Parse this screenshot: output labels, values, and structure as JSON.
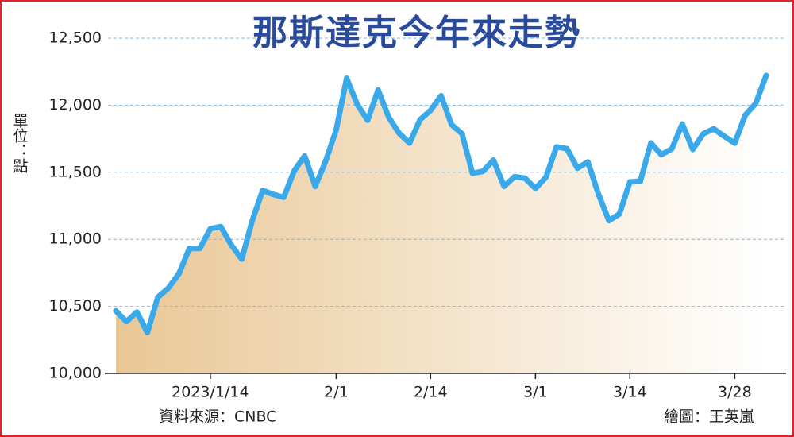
{
  "chart_data": {
    "type": "area-line",
    "title": "那斯達克今年來走勢",
    "y_label": "單位：點",
    "source": "資料來源：CNBC",
    "credit": "繪圖：王英嵐",
    "color": "#3aa9ea",
    "fill_colors": [
      "#e9c795",
      "#ffffff"
    ],
    "grid": true,
    "ylim": [
      10000,
      12500
    ],
    "yticks": [
      {
        "value": 10000,
        "label": "10,000"
      },
      {
        "value": 10500,
        "label": "10,500"
      },
      {
        "value": 11000,
        "label": "11,000"
      },
      {
        "value": 11500,
        "label": "11,500"
      },
      {
        "value": 12000,
        "label": "12,000"
      },
      {
        "value": 12500,
        "label": "12,500"
      }
    ],
    "categories": [
      null,
      null,
      null,
      null,
      null,
      null,
      null,
      null,
      null,
      "2023/1/14",
      null,
      null,
      null,
      null,
      null,
      null,
      null,
      null,
      null,
      null,
      null,
      "2/1",
      null,
      null,
      null,
      null,
      null,
      null,
      null,
      null,
      "2/14",
      null,
      null,
      null,
      null,
      null,
      null,
      null,
      null,
      null,
      "3/1",
      null,
      null,
      null,
      null,
      null,
      null,
      null,
      null,
      "3/14",
      null,
      null,
      null,
      null,
      null,
      null,
      null,
      null,
      null,
      "3/28",
      null,
      null,
      null
    ],
    "values": [
      10466,
      10386,
      10458,
      10305,
      10569,
      10636,
      10743,
      10931,
      10932,
      11079,
      11095,
      10958,
      10852,
      11140,
      11365,
      11335,
      11313,
      11512,
      11622,
      11394,
      11585,
      11816,
      12201,
      12007,
      11888,
      12114,
      11911,
      11790,
      11718,
      11892,
      11961,
      12071,
      11855,
      11787,
      11492,
      11507,
      11591,
      11395,
      11467,
      11456,
      11379,
      11463,
      11689,
      11676,
      11530,
      11577,
      11338,
      11139,
      11189,
      11428,
      11434,
      11718,
      11631,
      11675,
      11860,
      11670,
      11787,
      11824,
      11768,
      11717,
      11926,
      12013,
      12222
    ]
  }
}
